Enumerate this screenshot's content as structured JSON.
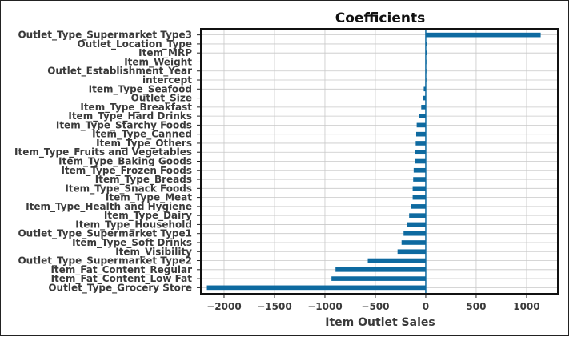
{
  "chart_data": {
    "type": "bar",
    "orientation": "horizontal",
    "title": "Coefficients",
    "xlabel": "Item Outlet Sales",
    "ylabel": "",
    "xlim": [
      -2230,
      1310
    ],
    "xticks": [
      -2000,
      -1500,
      -1000,
      -500,
      0,
      500,
      1000
    ],
    "xtick_labels": [
      "−2000",
      "−1500",
      "−1000",
      "−500",
      "0",
      "500",
      "1000"
    ],
    "grid": true,
    "bar_color": "#0e6aa0",
    "categories": [
      "Outlet_Type_Supermarket Type3",
      "Outlet_Location_Type",
      "Item_MRP",
      "Item_Weight",
      "Outlet_Establishment_Year",
      "intercept",
      "Item_Type_Seafood",
      "Outlet_Size",
      "Item_Type_Breakfast",
      "Item_Type_Hard Drinks",
      "Item_Type_Starchy Foods",
      "Item_Type_Canned",
      "Item_Type_Others",
      "Item_Type_Fruits and Vegetables",
      "Item_Type_Baking Goods",
      "Item_Type_Frozen Foods",
      "Item_Type_Breads",
      "Item_Type_Snack Foods",
      "Item_Type_Meat",
      "Item_Type_Health and Hygiene",
      "Item_Type_Dairy",
      "Item_Type_Household",
      "Outlet_Type_Supermarket Type1",
      "Item_Type_Soft Drinks",
      "Item_Visibility",
      "Outlet_Type_Supermarket Type2",
      "Item_Fat_Content_Regular",
      "Item_Fat_Content_Low Fat",
      "Outlet_Type_Grocery Store"
    ],
    "values": [
      1140,
      8,
      16,
      1,
      0,
      0,
      -20,
      -25,
      -45,
      -70,
      -90,
      -95,
      -100,
      -105,
      -110,
      -120,
      -125,
      -130,
      -130,
      -150,
      -165,
      -185,
      -220,
      -240,
      -280,
      -575,
      -895,
      -935,
      -2170
    ]
  }
}
